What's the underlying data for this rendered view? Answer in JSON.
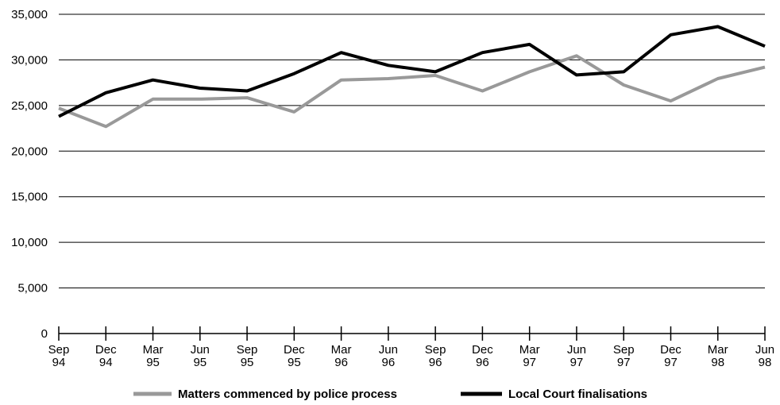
{
  "chart_data": {
    "type": "line",
    "title": "",
    "xlabel": "",
    "ylabel": "",
    "ylim": [
      0,
      35000
    ],
    "yticks": [
      0,
      5000,
      10000,
      15000,
      20000,
      25000,
      30000,
      35000
    ],
    "ytick_labels": [
      "0",
      "5,000",
      "10,000",
      "15,000",
      "20,000",
      "25,000",
      "30,000",
      "35,000"
    ],
    "grid": "horizontal",
    "legend_position": "bottom",
    "categories": [
      [
        "Sep",
        "94"
      ],
      [
        "Dec",
        "94"
      ],
      [
        "Mar",
        "95"
      ],
      [
        "Jun",
        "95"
      ],
      [
        "Sep",
        "95"
      ],
      [
        "Dec",
        "95"
      ],
      [
        "Mar",
        "96"
      ],
      [
        "Jun",
        "96"
      ],
      [
        "Sep",
        "96"
      ],
      [
        "Dec",
        "96"
      ],
      [
        "Mar",
        "97"
      ],
      [
        "Jun",
        "97"
      ],
      [
        "Sep",
        "97"
      ],
      [
        "Dec",
        "97"
      ],
      [
        "Mar",
        "98"
      ],
      [
        "Jun",
        "98"
      ]
    ],
    "series": [
      {
        "name": "Matters commenced by police process",
        "color": "#999999",
        "values": [
          24700,
          22700,
          25700,
          25700,
          25850,
          24300,
          27800,
          27950,
          28300,
          26600,
          28700,
          30450,
          27250,
          25500,
          27950,
          29200
        ]
      },
      {
        "name": "Local Court finalisations",
        "color": "#000000",
        "values": [
          23800,
          26400,
          27800,
          26900,
          26600,
          28500,
          30800,
          29400,
          28700,
          30800,
          31700,
          28350,
          28700,
          32750,
          33650,
          31500
        ]
      }
    ]
  }
}
